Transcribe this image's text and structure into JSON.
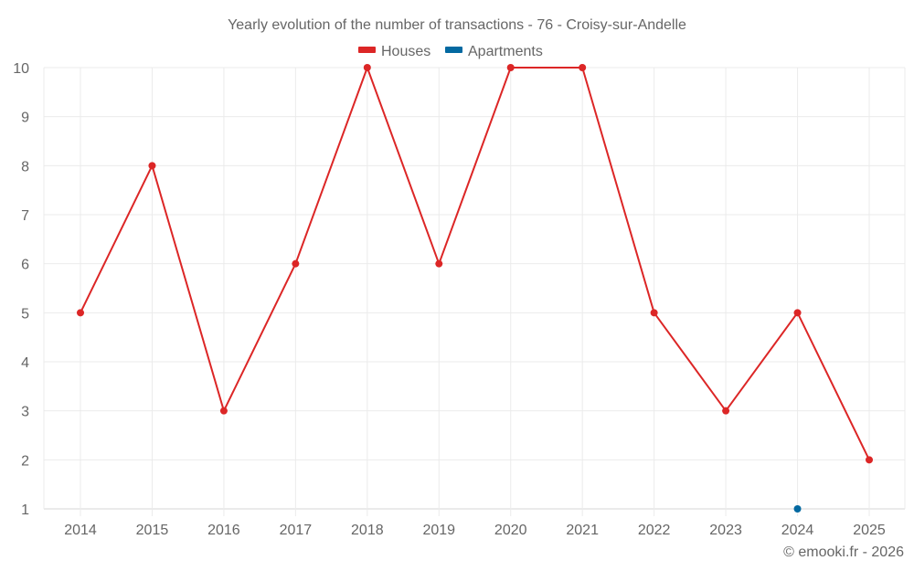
{
  "chart_data": {
    "type": "line",
    "title": "Yearly evolution of the number of transactions - 76 - Croisy-sur-Andelle",
    "xlabel": "",
    "ylabel": "",
    "categories": [
      "2014",
      "2015",
      "2016",
      "2017",
      "2018",
      "2019",
      "2020",
      "2021",
      "2022",
      "2023",
      "2024",
      "2025"
    ],
    "series": [
      {
        "name": "Houses",
        "color": "#dc2626",
        "values": [
          5,
          8,
          3,
          6,
          10,
          6,
          10,
          10,
          5,
          3,
          5,
          2
        ]
      },
      {
        "name": "Apartments",
        "color": "#0369a1",
        "values": [
          null,
          null,
          null,
          null,
          null,
          null,
          null,
          null,
          null,
          null,
          1,
          null
        ]
      }
    ],
    "ylim": [
      1,
      10
    ],
    "yticks": [
      1,
      2,
      3,
      4,
      5,
      6,
      7,
      8,
      9,
      10
    ],
    "grid": true,
    "legend_position": "top-center"
  },
  "legend": {
    "items": [
      {
        "label": "Houses",
        "color": "#dc2626"
      },
      {
        "label": "Apartments",
        "color": "#0369a1"
      }
    ]
  },
  "credit": "© emooki.fr - 2026"
}
